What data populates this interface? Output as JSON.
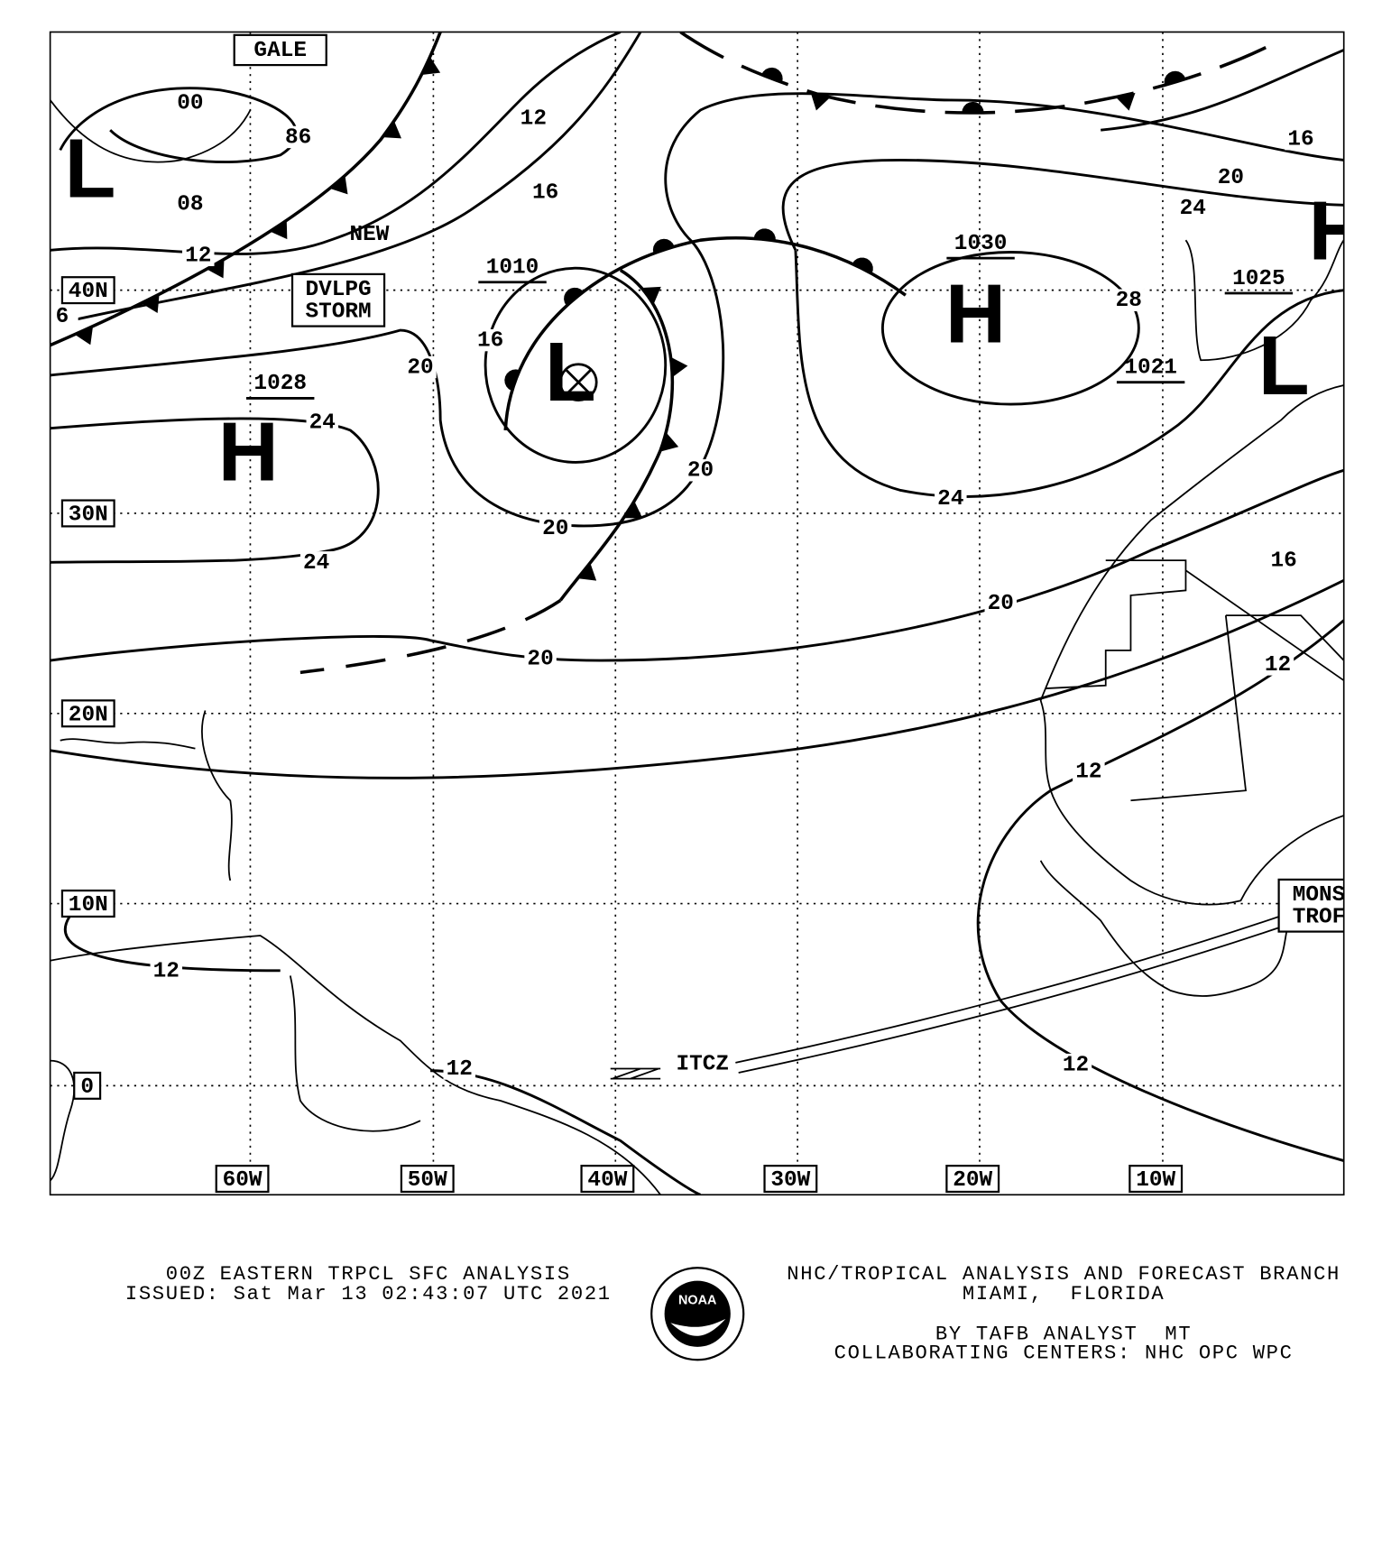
{
  "map": {
    "lat_labels": [
      "40N",
      "30N",
      "20N",
      "10N",
      "0"
    ],
    "lon_labels": [
      "60W",
      "50W",
      "40W",
      "30W",
      "20W",
      "10W"
    ],
    "centers": [
      {
        "symbol": "L"
      },
      {
        "symbol": "L",
        "pressure": "1010"
      },
      {
        "symbol": "H",
        "pressure": "1028"
      },
      {
        "symbol": "H",
        "pressure": "1030"
      },
      {
        "symbol": "L",
        "pressure": "1021"
      },
      {
        "symbol": "H",
        "pressure": "1025"
      }
    ],
    "isobar_labels": [
      "00",
      "86",
      "08",
      "12",
      "6",
      "12",
      "16",
      "20",
      "16",
      "24",
      "24",
      "20",
      "20",
      "20",
      "20",
      "24",
      "28",
      "24",
      "16",
      "20",
      "16",
      "12",
      "12",
      "12",
      "12",
      "12"
    ],
    "annotations": [
      "NEW",
      "ITCZ"
    ],
    "boxes": [
      [
        "GALE"
      ],
      [
        "DVLPG",
        "STORM"
      ],
      [
        "MONS",
        "TROF"
      ]
    ]
  },
  "footer": {
    "left": [
      "00Z EASTERN TRPCL SFC ANALYSIS",
      "ISSUED: Sat Mar 13 02:43:07 UTC 2021"
    ],
    "right": [
      "NHC/TROPICAL ANALYSIS AND FORECAST BRANCH",
      "MIAMI,  FLORIDA",
      "BY TAFB ANALYST  MT",
      "COLLABORATING CENTERS: NHC OPC WPC"
    ],
    "logo": "NOAA"
  }
}
